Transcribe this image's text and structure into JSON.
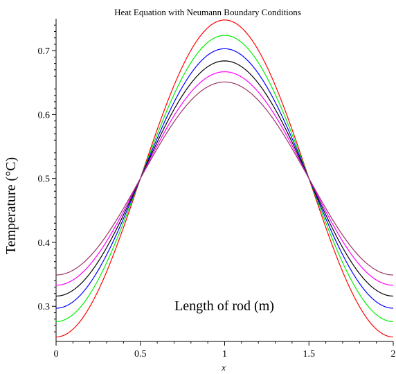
{
  "chart_data": {
    "type": "line",
    "title": "Heat Equation with Neumann Boundary Conditions",
    "xlabel": "x",
    "ylabel": "Temperature (°C)",
    "annotation": "Length of rod (m)",
    "xlim": [
      0,
      2
    ],
    "ylim": [
      0.245,
      0.75
    ],
    "x_ticks": [
      "0",
      "0.5",
      "1",
      "1.5",
      "2"
    ],
    "y_ticks": [
      "0.3",
      "0.4",
      "0.5",
      "0.6",
      "0.7"
    ],
    "x_tick_values": [
      0,
      0.5,
      1,
      1.5,
      2
    ],
    "y_tick_values": [
      0.3,
      0.4,
      0.5,
      0.6,
      0.7
    ],
    "grid": false,
    "series": [
      {
        "color": "#ff0000",
        "amplitude": 0.248
      },
      {
        "color": "#00ee00",
        "amplitude": 0.224
      },
      {
        "color": "#0000ff",
        "amplitude": 0.203
      },
      {
        "color": "#000000",
        "amplitude": 0.184
      },
      {
        "color": "#ff00ff",
        "amplitude": 0.167
      },
      {
        "color": "#993366",
        "amplitude": 0.151
      }
    ],
    "curve_form": "T(x) = 0.5 - amplitude * cos(pi * x)"
  }
}
